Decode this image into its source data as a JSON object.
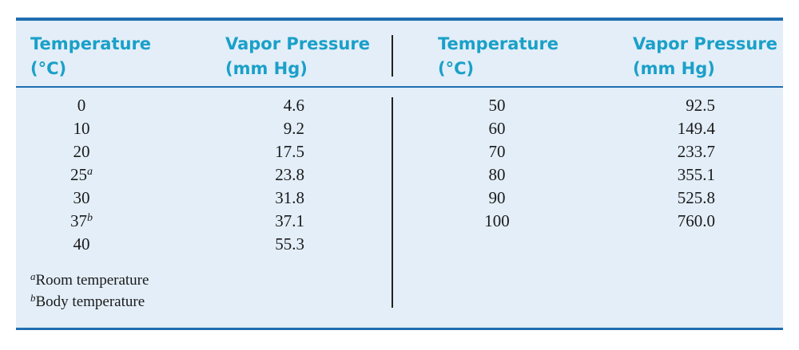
{
  "table": {
    "headers": {
      "left_temp": [
        "Temperature",
        "(°C)"
      ],
      "left_vp": [
        "Vapor Pressure",
        "(mm Hg)"
      ],
      "right_temp": [
        "Temperature",
        "(°C)"
      ],
      "right_vp": [
        "Vapor Pressure",
        "(mm Hg)"
      ]
    },
    "left_rows": [
      {
        "temp": "0",
        "mark": "",
        "vp": "4.6"
      },
      {
        "temp": "10",
        "mark": "",
        "vp": "9.2"
      },
      {
        "temp": "20",
        "mark": "",
        "vp": "17.5"
      },
      {
        "temp": "25",
        "mark": "a",
        "vp": "23.8"
      },
      {
        "temp": "30",
        "mark": "",
        "vp": "31.8"
      },
      {
        "temp": "37",
        "mark": "b",
        "vp": "37.1"
      },
      {
        "temp": "40",
        "mark": "",
        "vp": "55.3"
      }
    ],
    "right_rows": [
      {
        "temp": "50",
        "mark": "",
        "vp": "92.5"
      },
      {
        "temp": "60",
        "mark": "",
        "vp": "149.4"
      },
      {
        "temp": "70",
        "mark": "",
        "vp": "233.7"
      },
      {
        "temp": "80",
        "mark": "",
        "vp": "355.1"
      },
      {
        "temp": "90",
        "mark": "",
        "vp": "525.8"
      },
      {
        "temp": "100",
        "mark": "",
        "vp": "760.0"
      }
    ],
    "footnotes": [
      {
        "mark": "a",
        "text": "Room temperature"
      },
      {
        "mark": "b",
        "text": "Body temperature"
      }
    ]
  },
  "colors": {
    "header_text": "#1aa0c9",
    "rule": "#1f6db0",
    "background": "#e3eef8"
  }
}
